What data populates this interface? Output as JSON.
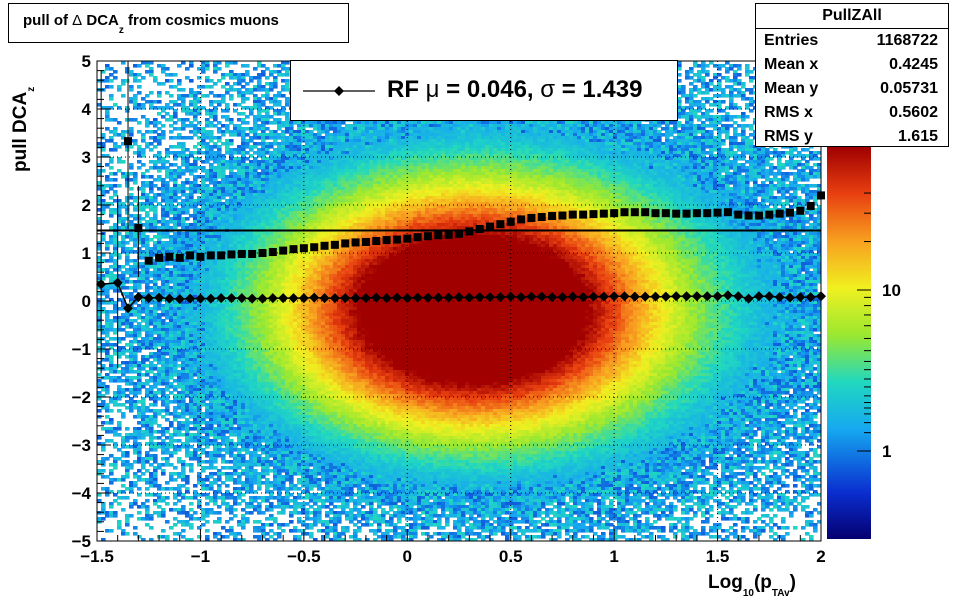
{
  "title": {
    "prefix": "pull of ",
    "delta": "Δ",
    "main": " DCA",
    "sub": "z",
    "suffix": " from cosmics muons"
  },
  "stats": {
    "name": "PullZAll",
    "rows": [
      {
        "label": "Entries",
        "value": "1168722"
      },
      {
        "label": "Mean x",
        "value": "0.4245"
      },
      {
        "label": "Mean y",
        "value": "0.05731"
      },
      {
        "label": "RMS x",
        "value": "0.5602"
      },
      {
        "label": "RMS y",
        "value": "1.615"
      }
    ]
  },
  "legend": {
    "label": "RF ",
    "mu_sym": "μ",
    "mid": " =  0.046, ",
    "sigma_sym": "σ",
    "end": " =   1.439"
  },
  "axes": {
    "ylabel_main": "pull DCA",
    "ylabel_sub": "z",
    "xlabel_pre": "Log",
    "xlabel_sub1": "10",
    "xlabel_mid": "(p",
    "xlabel_sub2": "TAv",
    "xlabel_post": ")"
  },
  "chart_data": {
    "type": "heatmap",
    "x": {
      "min": -1.5,
      "max": 2,
      "ticks": [
        -1.5,
        -1,
        -0.5,
        0,
        0.5,
        1,
        1.5,
        2
      ],
      "tick_labels": [
        "−1.5",
        "−1",
        "−0.5",
        "0",
        "0.5",
        "1",
        "1.5",
        "2"
      ]
    },
    "y": {
      "min": -5,
      "max": 5,
      "ticks": [
        -5,
        -4,
        -3,
        -2,
        -1,
        0,
        1,
        2,
        3,
        4,
        5
      ],
      "tick_labels": [
        "−5",
        "−4",
        "−3",
        "−2",
        "−1",
        "0",
        "1",
        "2",
        "3",
        "4",
        "5"
      ]
    },
    "z": {
      "scale": "log",
      "tick_labels": [
        "1",
        "10"
      ],
      "tick_values": [
        1,
        10
      ]
    },
    "peak": {
      "x": 0.3,
      "y": -0.2
    },
    "grid": true,
    "reference_line_y": 1.47,
    "series": [
      {
        "marker": "square",
        "x": [
          -1.48,
          -1.4,
          -1.35,
          -1.3,
          -1.25,
          -1.2,
          -1.15,
          -1.1,
          -1.05,
          -1,
          -0.95,
          -0.9,
          -0.85,
          -0.8,
          -0.75,
          -0.7,
          -0.65,
          -0.6,
          -0.55,
          -0.5,
          -0.45,
          -0.4,
          -0.35,
          -0.3,
          -0.25,
          -0.2,
          -0.15,
          -0.1,
          -0.05,
          0,
          0.05,
          0.1,
          0.15,
          0.2,
          0.25,
          0.3,
          0.35,
          0.4,
          0.45,
          0.5,
          0.55,
          0.6,
          0.65,
          0.7,
          0.75,
          0.8,
          0.85,
          0.9,
          0.95,
          1,
          1.05,
          1.1,
          1.15,
          1.2,
          1.25,
          1.3,
          1.35,
          1.4,
          1.45,
          1.5,
          1.55,
          1.6,
          1.65,
          1.7,
          1.75,
          1.8,
          1.85,
          1.9,
          1.95,
          2
        ],
        "y": [
          null,
          null,
          3.33,
          1.52,
          0.84,
          0.9,
          0.92,
          0.9,
          0.95,
          0.92,
          0.95,
          0.95,
          0.97,
          0.98,
          0.98,
          1.0,
          1.02,
          1.05,
          1.08,
          1.1,
          1.12,
          1.15,
          1.17,
          1.2,
          1.22,
          1.23,
          1.25,
          1.27,
          1.28,
          1.3,
          1.33,
          1.35,
          1.37,
          1.38,
          1.4,
          1.45,
          1.5,
          1.55,
          1.6,
          1.65,
          1.7,
          1.73,
          1.75,
          1.77,
          1.78,
          1.8,
          1.8,
          1.81,
          1.82,
          1.83,
          1.85,
          1.85,
          1.85,
          1.83,
          1.83,
          1.82,
          1.82,
          1.83,
          1.83,
          1.84,
          1.85,
          1.8,
          1.78,
          1.78,
          1.8,
          1.82,
          1.84,
          1.88,
          1.98,
          2.2
        ]
      },
      {
        "marker": "diamond",
        "x": [
          -1.48,
          -1.4,
          -1.35,
          -1.3,
          -1.25,
          -1.2,
          -1.15,
          -1.1,
          -1.05,
          -1,
          -0.95,
          -0.9,
          -0.85,
          -0.8,
          -0.75,
          -0.7,
          -0.65,
          -0.6,
          -0.55,
          -0.5,
          -0.45,
          -0.4,
          -0.35,
          -0.3,
          -0.25,
          -0.2,
          -0.15,
          -0.1,
          -0.05,
          0,
          0.05,
          0.1,
          0.15,
          0.2,
          0.25,
          0.3,
          0.35,
          0.4,
          0.45,
          0.5,
          0.55,
          0.6,
          0.65,
          0.7,
          0.75,
          0.8,
          0.85,
          0.9,
          0.95,
          1,
          1.05,
          1.1,
          1.15,
          1.2,
          1.25,
          1.3,
          1.35,
          1.4,
          1.45,
          1.5,
          1.55,
          1.6,
          1.65,
          1.7,
          1.75,
          1.8,
          1.85,
          1.9,
          1.95,
          2
        ],
        "y": [
          0.35,
          0.38,
          -0.15,
          0.08,
          0.06,
          0.07,
          0.05,
          0.04,
          0.05,
          0.05,
          0.05,
          0.06,
          0.06,
          0.06,
          0.05,
          0.05,
          0.06,
          0.06,
          0.06,
          0.06,
          0.07,
          0.06,
          0.06,
          0.06,
          0.06,
          0.06,
          0.07,
          0.06,
          0.07,
          0.06,
          0.07,
          0.07,
          0.07,
          0.07,
          0.08,
          0.07,
          0.08,
          0.08,
          0.08,
          0.09,
          0.08,
          0.09,
          0.09,
          0.08,
          0.08,
          0.09,
          0.08,
          0.09,
          0.09,
          0.1,
          0.1,
          0.09,
          0.09,
          0.09,
          0.09,
          0.1,
          0.1,
          0.1,
          0.1,
          0.1,
          0.12,
          0.1,
          0.05,
          0.1,
          0.1,
          0.08,
          0.07,
          0.08,
          0.08,
          0.1
        ]
      }
    ],
    "fit": {
      "label": "RF",
      "mu": 0.046,
      "sigma": 1.439
    }
  }
}
